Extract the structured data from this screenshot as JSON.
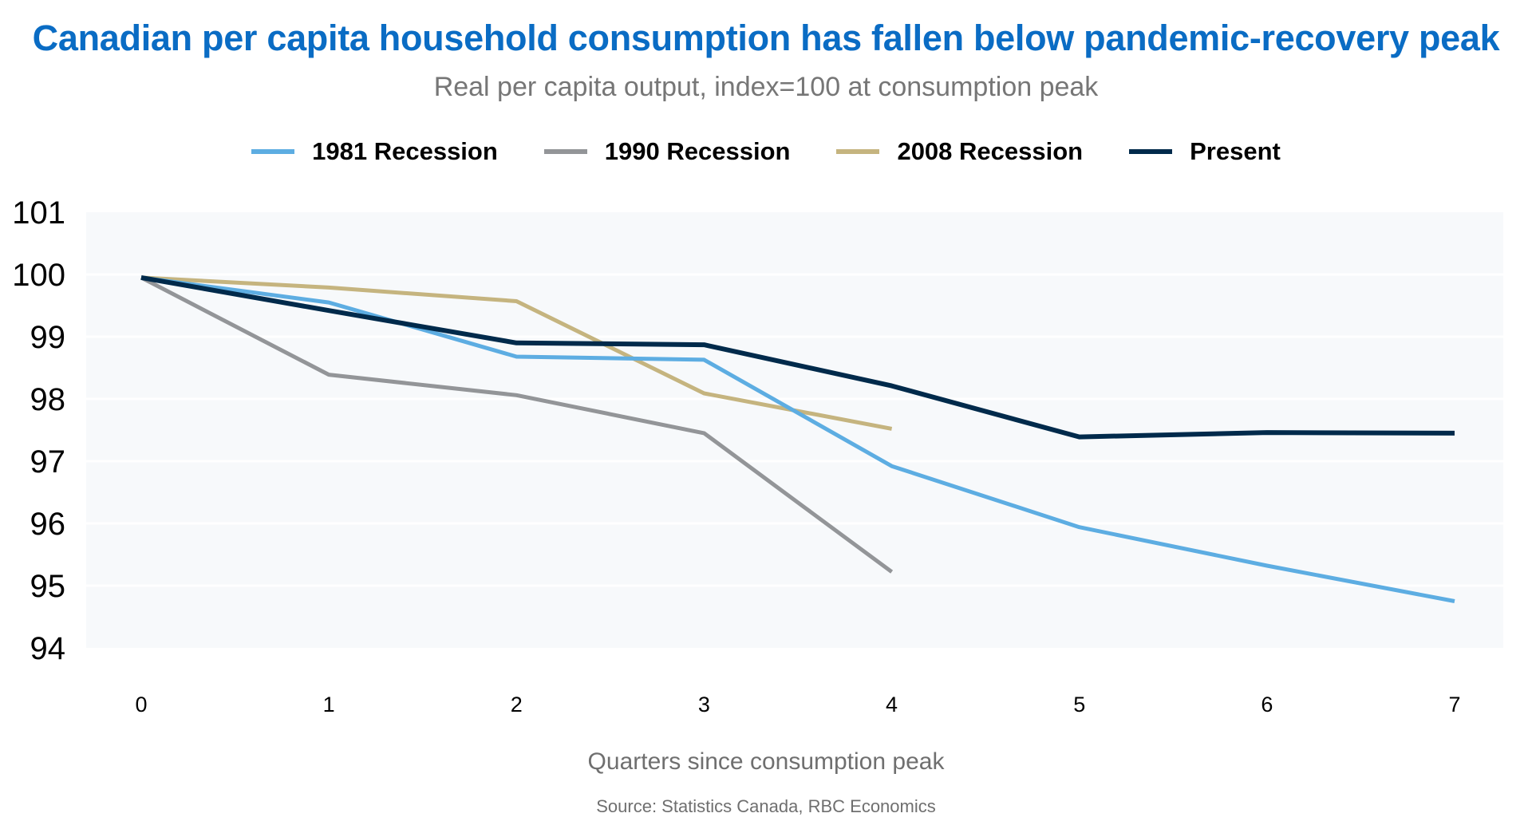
{
  "title": "Canadian per capita household consumption has fallen below pandemic-recovery peak",
  "subtitle": "Real per capita output, index=100 at consumption peak",
  "source": "Source: Statistics Canada, RBC Economics",
  "chart_data": {
    "type": "line",
    "title": "Canadian per capita household consumption has fallen below pandemic-recovery peak",
    "subtitle": "Real per capita output, index=100 at consumption peak",
    "xlabel": "Quarters since consumption peak",
    "ylabel": "",
    "x": [
      0,
      1,
      2,
      3,
      4,
      5,
      6,
      7
    ],
    "xticks": [
      "0",
      "1",
      "2",
      "3",
      "4",
      "5",
      "6",
      "7"
    ],
    "yticks": [
      "94",
      "95",
      "96",
      "97",
      "98",
      "99",
      "100",
      "101"
    ],
    "ylim": [
      94,
      101
    ],
    "xlim": [
      0,
      7
    ],
    "grid": true,
    "legend_position": "top-center",
    "series": [
      {
        "name": "1981 Recession",
        "color": "#5dade2",
        "values": [
          99.95,
          99.55,
          98.68,
          98.63,
          96.92,
          95.94,
          95.32,
          94.75
        ]
      },
      {
        "name": "1990 Recession",
        "color": "#939598",
        "values": [
          99.95,
          98.39,
          98.06,
          97.45,
          95.22,
          null,
          null,
          null
        ]
      },
      {
        "name": "2008 Recession",
        "color": "#c5b47f",
        "values": [
          99.95,
          99.79,
          99.57,
          98.09,
          97.52,
          null,
          null,
          null
        ]
      },
      {
        "name": "Present",
        "color": "#002a4b",
        "values": [
          99.95,
          99.42,
          98.9,
          98.87,
          98.21,
          97.39,
          97.46,
          97.45
        ]
      }
    ]
  }
}
